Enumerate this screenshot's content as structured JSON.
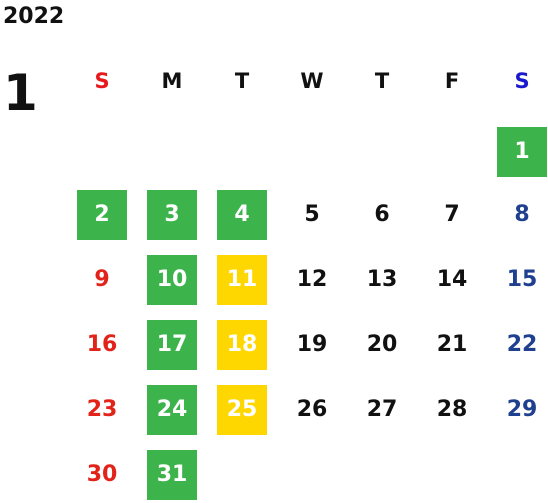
{
  "year": "2022",
  "month": "1",
  "weekdays": [
    {
      "label": "S",
      "color": "#e8191c"
    },
    {
      "label": "M",
      "color": "#111111"
    },
    {
      "label": "T",
      "color": "#111111"
    },
    {
      "label": "W",
      "color": "#111111"
    },
    {
      "label": "T",
      "color": "#111111"
    },
    {
      "label": "F",
      "color": "#111111"
    },
    {
      "label": "S",
      "color": "#1a1acc"
    }
  ],
  "colors": {
    "sunday": "#e2231a",
    "saturday": "#1f3f8f",
    "weekday": "#111111",
    "holiday_green": "#3cb44b",
    "holiday_yellow": "#ffd700",
    "highlight_text": "#ffffff"
  },
  "days": [
    {
      "day": "1",
      "weekday": 6,
      "week": 0,
      "highlight": "green"
    },
    {
      "day": "2",
      "weekday": 0,
      "week": 1,
      "highlight": "green"
    },
    {
      "day": "3",
      "weekday": 1,
      "week": 1,
      "highlight": "green"
    },
    {
      "day": "4",
      "weekday": 2,
      "week": 1,
      "highlight": "green"
    },
    {
      "day": "5",
      "weekday": 3,
      "week": 1,
      "highlight": ""
    },
    {
      "day": "6",
      "weekday": 4,
      "week": 1,
      "highlight": ""
    },
    {
      "day": "7",
      "weekday": 5,
      "week": 1,
      "highlight": ""
    },
    {
      "day": "8",
      "weekday": 6,
      "week": 1,
      "highlight": ""
    },
    {
      "day": "9",
      "weekday": 0,
      "week": 2,
      "highlight": ""
    },
    {
      "day": "10",
      "weekday": 1,
      "week": 2,
      "highlight": "green"
    },
    {
      "day": "11",
      "weekday": 2,
      "week": 2,
      "highlight": "yellow"
    },
    {
      "day": "12",
      "weekday": 3,
      "week": 2,
      "highlight": ""
    },
    {
      "day": "13",
      "weekday": 4,
      "week": 2,
      "highlight": ""
    },
    {
      "day": "14",
      "weekday": 5,
      "week": 2,
      "highlight": ""
    },
    {
      "day": "15",
      "weekday": 6,
      "week": 2,
      "highlight": ""
    },
    {
      "day": "16",
      "weekday": 0,
      "week": 3,
      "highlight": ""
    },
    {
      "day": "17",
      "weekday": 1,
      "week": 3,
      "highlight": "green"
    },
    {
      "day": "18",
      "weekday": 2,
      "week": 3,
      "highlight": "yellow"
    },
    {
      "day": "19",
      "weekday": 3,
      "week": 3,
      "highlight": ""
    },
    {
      "day": "20",
      "weekday": 4,
      "week": 3,
      "highlight": ""
    },
    {
      "day": "21",
      "weekday": 5,
      "week": 3,
      "highlight": ""
    },
    {
      "day": "22",
      "weekday": 6,
      "week": 3,
      "highlight": ""
    },
    {
      "day": "23",
      "weekday": 0,
      "week": 4,
      "highlight": ""
    },
    {
      "day": "24",
      "weekday": 1,
      "week": 4,
      "highlight": "green"
    },
    {
      "day": "25",
      "weekday": 2,
      "week": 4,
      "highlight": "yellow"
    },
    {
      "day": "26",
      "weekday": 3,
      "week": 4,
      "highlight": ""
    },
    {
      "day": "27",
      "weekday": 4,
      "week": 4,
      "highlight": ""
    },
    {
      "day": "28",
      "weekday": 5,
      "week": 4,
      "highlight": ""
    },
    {
      "day": "29",
      "weekday": 6,
      "week": 4,
      "highlight": ""
    },
    {
      "day": "30",
      "weekday": 0,
      "week": 5,
      "highlight": ""
    },
    {
      "day": "31",
      "weekday": 1,
      "week": 5,
      "highlight": "green"
    }
  ]
}
